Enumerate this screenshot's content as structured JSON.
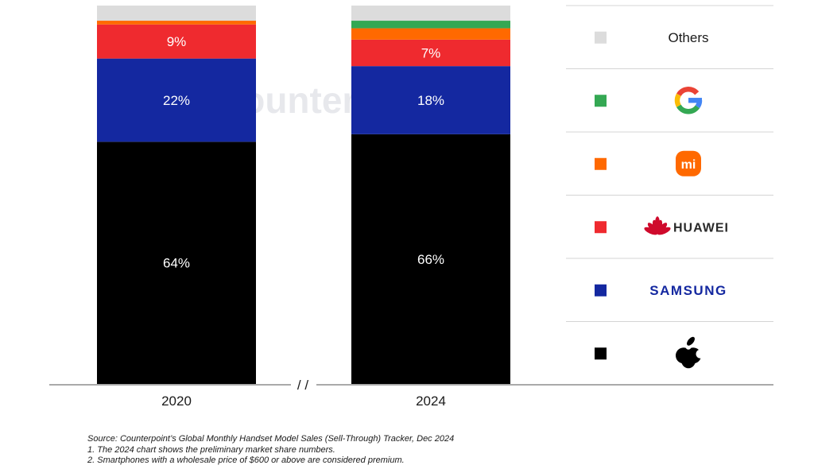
{
  "chart_data": {
    "type": "bar",
    "stacked": true,
    "normalized": true,
    "categories": [
      "2020",
      "2024"
    ],
    "axis_break": "/ /",
    "series": [
      {
        "name": "Apple",
        "color": "#000000",
        "icon": "apple-logo",
        "values": [
          64,
          66
        ],
        "labels": [
          "64%",
          "66%"
        ]
      },
      {
        "name": "Samsung",
        "color": "#1428a0",
        "icon": "samsung-logo",
        "brand_text": "SAMSUNG",
        "values": [
          22,
          18
        ],
        "labels": [
          "22%",
          "18%"
        ]
      },
      {
        "name": "Huawei",
        "color": "#ef2a2f",
        "icon": "huawei-logo",
        "brand_text": "HUAWEI",
        "values": [
          9,
          7
        ],
        "labels": [
          "9%",
          "7%"
        ]
      },
      {
        "name": "Xiaomi",
        "color": "#ff6900",
        "icon": "xiaomi-logo",
        "brand_text": "mi",
        "values": [
          1,
          3
        ],
        "labels": [
          "",
          ""
        ]
      },
      {
        "name": "Google",
        "color": "#34a853",
        "icon": "google-logo",
        "values": [
          0,
          2
        ],
        "labels": [
          "",
          ""
        ]
      },
      {
        "name": "Others",
        "color": "#dcdcdc",
        "values": [
          4,
          4
        ],
        "labels": [
          "",
          ""
        ]
      }
    ],
    "legend": {
      "placement": "right",
      "order": [
        "Others",
        "Google",
        "Xiaomi",
        "Huawei",
        "Samsung",
        "Apple"
      ]
    },
    "ylim": [
      0,
      100
    ],
    "watermark": "Counterpoint"
  },
  "notes": {
    "source": "Source: Counterpoint’s Global Monthly Handset Model Sales (Sell-Through) Tracker, Dec 2024",
    "note1": "1. The 2024 chart shows the preliminary market share numbers.",
    "note2": "2. Smartphones with a wholesale price of $600 or above are considered premium."
  }
}
